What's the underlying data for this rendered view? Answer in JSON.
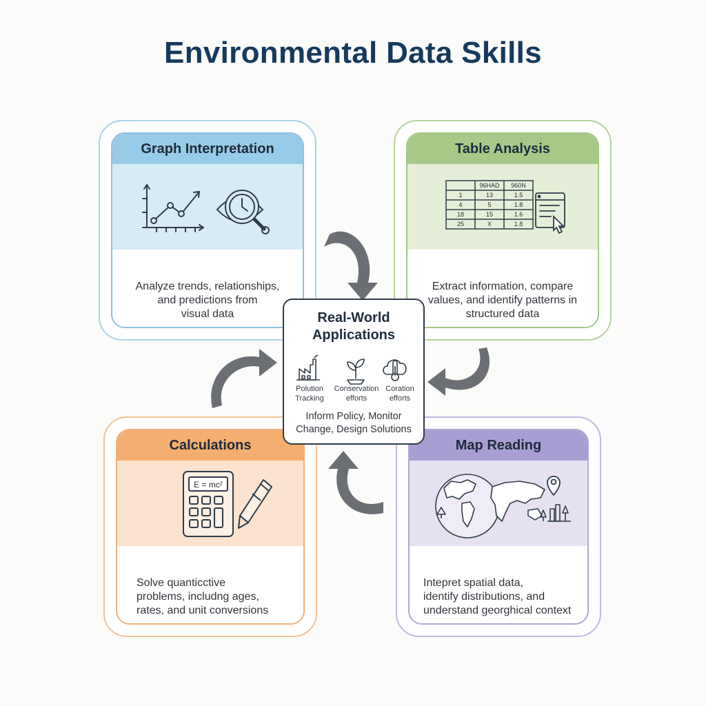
{
  "title": "Environmental Data Skills",
  "cards": {
    "graph": {
      "heading": "Graph Interpretation",
      "desc_lines": [
        "Analyze trends, relationships,",
        "and predictions from",
        "visual data"
      ],
      "icons": [
        "line-chart-icon",
        "eye-magnifier-icon"
      ]
    },
    "table": {
      "heading": "Table Analysis",
      "desc_lines": [
        "Extract information, compare",
        "values, and identify patterns in",
        "structured data"
      ],
      "table_headers": [
        "",
        "96HAD",
        "960N"
      ],
      "table_rows": [
        [
          "1",
          "13",
          "1.5"
        ],
        [
          "4",
          "5",
          "1.8"
        ],
        [
          "18",
          "15",
          "1.6"
        ],
        [
          "25",
          "X",
          "1.8"
        ]
      ],
      "icons": [
        "data-table-icon",
        "browser-cursor-icon"
      ]
    },
    "calc": {
      "heading": "Calculations",
      "desc_lines": [
        "Solve quanticctive",
        "problems, includng ages,",
        "rates, and unit conversions"
      ],
      "calc_display": "E = mc²",
      "icons": [
        "calculator-icon",
        "pencil-icon"
      ]
    },
    "map": {
      "heading": "Map Reading",
      "desc_lines": [
        "Intepret spatial data,",
        "identify distributions, and",
        "understand georghical context"
      ],
      "icons": [
        "world-map-icon",
        "location-pin-icon"
      ]
    }
  },
  "center": {
    "title_lines": [
      "Real-World",
      "Applications"
    ],
    "items": [
      {
        "label_lines": [
          "Polution",
          "Tracking"
        ],
        "icon": "factory-icon"
      },
      {
        "label_lines": [
          "Conservation",
          "efforts"
        ],
        "icon": "sprout-icon"
      },
      {
        "label_lines": [
          "Coration",
          "efforts"
        ],
        "icon": "cloud-thermometer-icon"
      }
    ],
    "footer_lines": [
      "Inform Policy, Monitor",
      "Change, Design Solutions"
    ]
  },
  "colors": {
    "title": "#163a5c",
    "graph_accent": "#98cbe8",
    "table_accent": "#a6c98a",
    "calc_accent": "#f4ae70",
    "map_accent": "#a99ed2",
    "arrow": "#6b6e72",
    "icon_stroke": "#2f3b48"
  }
}
